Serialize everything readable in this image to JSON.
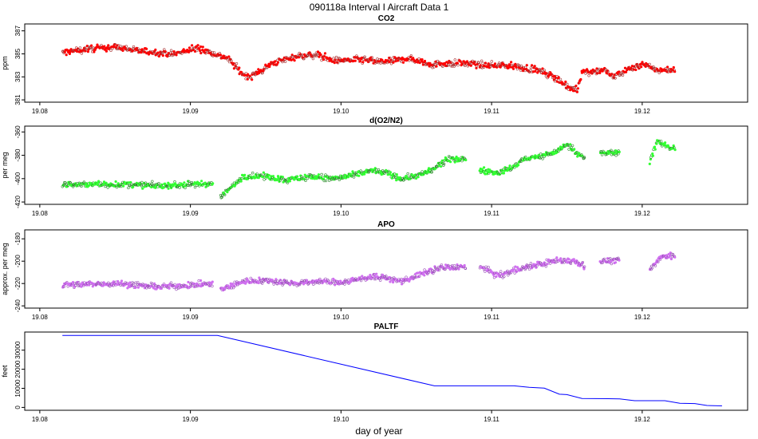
{
  "figure": {
    "title": "090118a   Interval I Aircraft Data 1",
    "xlabel": "day of year"
  },
  "chart_data": [
    {
      "type": "scatter",
      "id": "co2",
      "title": "CO2",
      "ylabel": "ppm",
      "xlim": [
        19.079,
        19.127
      ],
      "ylim": [
        380.8,
        387.6
      ],
      "xticks": [
        19.08,
        19.09,
        19.1,
        19.11,
        19.12
      ],
      "xtick_labels": [
        "19.08",
        "19.09",
        "19.10",
        "19.11",
        "19.12"
      ],
      "yticks": [
        381,
        383,
        385,
        387
      ],
      "ytick_labels": [
        "381",
        "383",
        "385",
        "387"
      ],
      "color": "#ff0000",
      "x_start": 19.0815,
      "x_end": 19.1222,
      "points": [
        [
          19.0815,
          385.1
        ],
        [
          19.083,
          385.4
        ],
        [
          19.085,
          385.6
        ],
        [
          19.087,
          385.2
        ],
        [
          19.089,
          385.0
        ],
        [
          19.0905,
          385.5
        ],
        [
          19.0925,
          384.6
        ],
        [
          19.0935,
          383.2
        ],
        [
          19.094,
          383.0
        ],
        [
          19.0955,
          384.2
        ],
        [
          19.097,
          384.8
        ],
        [
          19.0985,
          384.9
        ],
        [
          19.0995,
          384.4
        ],
        [
          19.101,
          384.5
        ],
        [
          19.103,
          384.3
        ],
        [
          19.1045,
          384.6
        ],
        [
          19.106,
          384.1
        ],
        [
          19.108,
          384.2
        ],
        [
          19.1095,
          384.0
        ],
        [
          19.111,
          384.0
        ],
        [
          19.113,
          383.6
        ],
        [
          19.1145,
          382.8
        ],
        [
          19.115,
          382.1
        ],
        [
          19.1157,
          381.9
        ],
        [
          19.116,
          383.4
        ],
        [
          19.1175,
          383.6
        ],
        [
          19.118,
          383.0
        ],
        [
          19.119,
          383.6
        ],
        [
          19.12,
          384.1
        ],
        [
          19.121,
          383.6
        ],
        [
          19.1222,
          383.6
        ]
      ]
    },
    {
      "type": "scatter",
      "id": "o2n2",
      "title": "d(O2/N2)",
      "ylabel": "per meg",
      "xlim": [
        19.079,
        19.127
      ],
      "ylim": [
        -422,
        -355
      ],
      "xticks": [
        19.08,
        19.09,
        19.1,
        19.11,
        19.12
      ],
      "xtick_labels": [
        "19.08",
        "19.09",
        "19.10",
        "19.11",
        "19.12"
      ],
      "yticks": [
        -420,
        -400,
        -380,
        -360
      ],
      "ytick_labels": [
        "-420",
        "-400",
        "-380",
        "-360"
      ],
      "color": "#33ff33",
      "segments": [
        [
          19.0815,
          19.0915
        ],
        [
          19.092,
          19.1083
        ],
        [
          19.1092,
          19.1162
        ],
        [
          19.1172,
          19.1185
        ],
        [
          19.1205,
          19.1222
        ]
      ],
      "points": [
        [
          19.0815,
          -405
        ],
        [
          19.085,
          -405
        ],
        [
          19.088,
          -406
        ],
        [
          19.0905,
          -405
        ],
        [
          19.0915,
          -404
        ],
        [
          19.092,
          -416
        ],
        [
          19.0935,
          -398
        ],
        [
          19.095,
          -398
        ],
        [
          19.0965,
          -401
        ],
        [
          19.098,
          -398
        ],
        [
          19.0995,
          -400
        ],
        [
          19.101,
          -397
        ],
        [
          19.102,
          -393
        ],
        [
          19.103,
          -395
        ],
        [
          19.104,
          -400
        ],
        [
          19.1055,
          -396
        ],
        [
          19.106,
          -393
        ],
        [
          19.107,
          -384
        ],
        [
          19.108,
          -383
        ],
        [
          19.1083,
          -384
        ],
        [
          19.1092,
          -393
        ],
        [
          19.1105,
          -395
        ],
        [
          19.1115,
          -390
        ],
        [
          19.112,
          -384
        ],
        [
          19.1135,
          -380
        ],
        [
          19.1145,
          -376
        ],
        [
          19.115,
          -370
        ],
        [
          19.1155,
          -376
        ],
        [
          19.1162,
          -383
        ],
        [
          19.1172,
          -378
        ],
        [
          19.1185,
          -378
        ],
        [
          19.1205,
          -385
        ],
        [
          19.121,
          -368
        ],
        [
          19.1215,
          -372
        ],
        [
          19.1222,
          -374
        ]
      ]
    },
    {
      "type": "scatter",
      "id": "apo",
      "title": "APO",
      "ylabel": "approx. per meg",
      "xlim": [
        19.079,
        19.127
      ],
      "ylim": [
        -242,
        -172
      ],
      "xticks": [
        19.08,
        19.09,
        19.1,
        19.11,
        19.12
      ],
      "xtick_labels": [
        "19.08",
        "19.09",
        "19.10",
        "19.11",
        "19.12"
      ],
      "yticks": [
        -240,
        -220,
        -200,
        -180
      ],
      "ytick_labels": [
        "-240",
        "-220",
        "-200",
        "-180"
      ],
      "color": "#d070f0",
      "segments": [
        [
          19.0815,
          19.0915
        ],
        [
          19.092,
          19.1083
        ],
        [
          19.1092,
          19.1162
        ],
        [
          19.1172,
          19.1185
        ],
        [
          19.1205,
          19.1222
        ]
      ],
      "points": [
        [
          19.0815,
          -221
        ],
        [
          19.085,
          -220
        ],
        [
          19.088,
          -223
        ],
        [
          19.0905,
          -221
        ],
        [
          19.0915,
          -220
        ],
        [
          19.092,
          -226
        ],
        [
          19.0935,
          -218
        ],
        [
          19.095,
          -217
        ],
        [
          19.097,
          -220
        ],
        [
          19.0985,
          -218
        ],
        [
          19.1,
          -219
        ],
        [
          19.102,
          -214
        ],
        [
          19.103,
          -215
        ],
        [
          19.104,
          -218
        ],
        [
          19.1055,
          -211
        ],
        [
          19.1065,
          -206
        ],
        [
          19.108,
          -205
        ],
        [
          19.1083,
          -206
        ],
        [
          19.1092,
          -205
        ],
        [
          19.1105,
          -213
        ],
        [
          19.112,
          -206
        ],
        [
          19.1135,
          -202
        ],
        [
          19.1145,
          -199
        ],
        [
          19.1155,
          -200
        ],
        [
          19.1162,
          -204
        ],
        [
          19.1172,
          -200
        ],
        [
          19.1185,
          -199
        ],
        [
          19.1205,
          -208
        ],
        [
          19.121,
          -200
        ],
        [
          19.1215,
          -195
        ],
        [
          19.1222,
          -195
        ]
      ]
    },
    {
      "type": "line",
      "id": "paltf",
      "title": "PALTF",
      "ylabel": "feet",
      "xlim": [
        19.079,
        19.127
      ],
      "ylim": [
        -1500,
        39500
      ],
      "xticks": [
        19.08,
        19.09,
        19.1,
        19.11,
        19.12
      ],
      "xtick_labels": [
        "19.08",
        "19.09",
        "19.10",
        "19.11",
        "19.12"
      ],
      "yticks": [
        0,
        10000,
        20000,
        30000
      ],
      "ytick_labels": [
        "0",
        "10000",
        "20000",
        "30000"
      ],
      "color": "#0000ff",
      "points": [
        [
          19.0815,
          37700
        ],
        [
          19.0918,
          37700
        ],
        [
          19.1062,
          11300
        ],
        [
          19.1115,
          11300
        ],
        [
          19.1125,
          10500
        ],
        [
          19.1135,
          10100
        ],
        [
          19.1145,
          6900
        ],
        [
          19.115,
          6700
        ],
        [
          19.116,
          4700
        ],
        [
          19.1185,
          4500
        ],
        [
          19.1195,
          3500
        ],
        [
          19.1215,
          3500
        ],
        [
          19.1225,
          2200
        ],
        [
          19.1235,
          2000
        ],
        [
          19.1243,
          1000
        ],
        [
          19.1253,
          800
        ]
      ]
    }
  ]
}
